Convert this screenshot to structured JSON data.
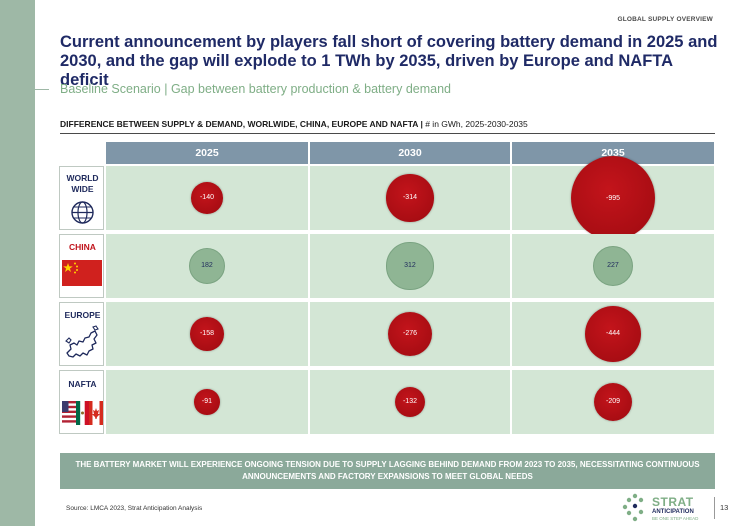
{
  "header": {
    "eyebrow": "GLOBAL SUPPLY OVERVIEW",
    "title": "Current announcement by players fall short of covering battery demand in 2025 and 2030, and the gap will explode to 1 TWh by 2035, driven by Europe and NAFTA deficit",
    "subtitle": "Baseline Scenario | Gap between battery production & battery demand"
  },
  "chart_header": {
    "title": "DIFFERENCE BETWEEN SUPPLY & DEMAND, WORLWIDE, CHINA, EUROPE AND NAFTA |",
    "unit": " # in GWh, 2025-2030-2035"
  },
  "chart_data": {
    "type": "bubble",
    "columns": [
      "2025",
      "2030",
      "2035"
    ],
    "rows": [
      "WORLD WIDE",
      "CHINA",
      "EUROPE",
      "NAFTA"
    ],
    "row_labels": [
      {
        "line1": "WORLD",
        "line2": "WIDE"
      },
      {
        "line1": "CHINA",
        "line2": ""
      },
      {
        "line1": "EUROPE",
        "line2": ""
      },
      {
        "line1": "NAFTA",
        "line2": ""
      }
    ],
    "values": [
      [
        -140,
        -314,
        -995
      ],
      [
        182,
        312,
        227
      ],
      [
        -158,
        -276,
        -444
      ],
      [
        -91,
        -132,
        -209
      ]
    ],
    "labels": [
      [
        "-140",
        "-314",
        "-995"
      ],
      [
        "182",
        "312",
        "227"
      ],
      [
        "-158",
        "-276",
        "-444"
      ],
      [
        "-91",
        "-132",
        "-209"
      ]
    ],
    "colors": {
      "negative": "#b50f16",
      "positive": "#8fb594",
      "cell": "#d3e6d5",
      "header": "#7f96a8"
    },
    "row_icons": [
      "globe-icon",
      "china-flag-icon",
      "europe-map-icon",
      "usa-mexico-canada-flags-icon"
    ]
  },
  "banner": "THE BATTERY MARKET WILL EXPERIENCE ONGOING TENSION DUE TO SUPPLY LAGGING BEHIND DEMAND FROM 2023 TO 2035, NECESSITATING CONTINUOUS ANNOUNCEMENTS AND FACTORY EXPANSIONS TO MEET GLOBAL NEEDS",
  "footer": {
    "source": "Source: LMCA 2023, Strat Anticipation Analysis",
    "logo_name": "STRAT",
    "logo_sub": "ANTICIPATION",
    "logo_tagline": "BE ONE STEP AHEAD",
    "page_number": "13"
  }
}
